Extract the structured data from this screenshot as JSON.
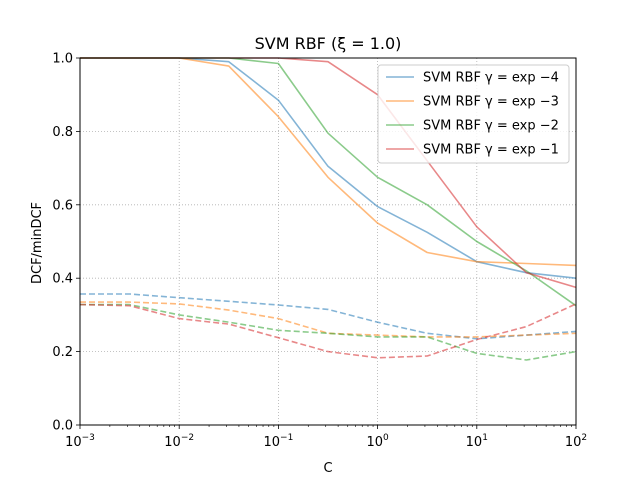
{
  "chart_data": {
    "type": "line",
    "title": "SVM RBF (ξ = 1.0)",
    "xlabel": "C",
    "ylabel": "DCF/minDCF",
    "xscale": "log",
    "xlim": [
      0.001,
      100
    ],
    "ylim": [
      0,
      1
    ],
    "grid": true,
    "legend_position": "top-right",
    "x_ticks": [
      {
        "base": "10",
        "exp": "−3"
      },
      {
        "base": "10",
        "exp": "−2"
      },
      {
        "base": "10",
        "exp": "−1"
      },
      {
        "base": "10",
        "exp": "0"
      },
      {
        "base": "10",
        "exp": "1"
      },
      {
        "base": "10",
        "exp": "2"
      }
    ],
    "y_ticks": [
      "0.0",
      "0.2",
      "0.4",
      "0.6",
      "0.8",
      "1.0"
    ],
    "x": [
      0.001,
      0.00316,
      0.01,
      0.0316,
      0.1,
      0.316,
      1,
      3.16,
      10,
      31.6,
      100
    ],
    "series": [
      {
        "name": "SVM RBF γ = exp −4",
        "color": "#1f77b4",
        "style": "solid",
        "values": [
          1.0,
          1.0,
          1.0,
          0.99,
          0.885,
          0.705,
          0.595,
          0.525,
          0.445,
          0.415,
          0.4
        ]
      },
      {
        "name": "SVM RBF γ = exp −3",
        "color": "#ff7f0e",
        "style": "solid",
        "values": [
          1.0,
          1.0,
          1.0,
          0.978,
          0.84,
          0.675,
          0.55,
          0.47,
          0.445,
          0.44,
          0.435
        ]
      },
      {
        "name": "SVM RBF γ = exp −2",
        "color": "#2ca02c",
        "style": "solid",
        "values": [
          1.0,
          1.0,
          1.0,
          1.0,
          0.985,
          0.795,
          0.675,
          0.6,
          0.5,
          0.42,
          0.325
        ]
      },
      {
        "name": "SVM RBF γ = exp −1",
        "color": "#d62728",
        "style": "solid",
        "values": [
          1.0,
          1.0,
          1.0,
          1.0,
          1.0,
          0.99,
          0.9,
          0.72,
          0.54,
          0.415,
          0.375
        ]
      },
      {
        "name": "",
        "color": "#1f77b4",
        "style": "dashed",
        "values": [
          0.357,
          0.357,
          0.347,
          0.337,
          0.327,
          0.315,
          0.28,
          0.25,
          0.235,
          0.245,
          0.255
        ]
      },
      {
        "name": "",
        "color": "#ff7f0e",
        "style": "dashed",
        "values": [
          0.335,
          0.335,
          0.33,
          0.313,
          0.29,
          0.25,
          0.245,
          0.24,
          0.24,
          0.245,
          0.25
        ]
      },
      {
        "name": "",
        "color": "#2ca02c",
        "style": "dashed",
        "values": [
          0.328,
          0.328,
          0.3,
          0.28,
          0.258,
          0.25,
          0.24,
          0.24,
          0.195,
          0.177,
          0.2
        ]
      },
      {
        "name": "",
        "color": "#d62728",
        "style": "dashed",
        "values": [
          0.328,
          0.325,
          0.29,
          0.275,
          0.238,
          0.2,
          0.183,
          0.188,
          0.233,
          0.268,
          0.33
        ]
      }
    ]
  }
}
